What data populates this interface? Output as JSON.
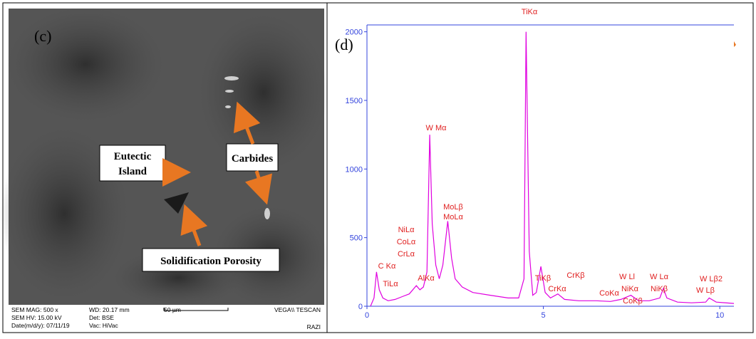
{
  "sem_image": {
    "panel_label": "(c)",
    "annotations": [
      "Eutectic",
      "Island",
      "Carbides",
      "Solidification Porosity"
    ],
    "info": [
      [
        "SEM MAG: 500 x",
        "SEM HV: 15.00 kV",
        "Date(m/d/y): 07/11/19"
      ],
      [
        "WD: 20.17 mm",
        "Det: BSE",
        "Vac: HiVac"
      ],
      [
        "50 µm"
      ],
      [
        "VEGA\\\\ TESCAN",
        "RAZI"
      ]
    ]
  },
  "chart_data": {
    "type": "line",
    "panel_label": "(d)",
    "color": "#e000e0",
    "x": [
      0.1,
      0.2,
      0.27,
      0.35,
      0.45,
      0.6,
      0.8,
      1.0,
      1.2,
      1.4,
      1.5,
      1.6,
      1.7,
      1.78,
      1.85,
      1.95,
      2.05,
      2.15,
      2.29,
      2.4,
      2.5,
      2.7,
      3.0,
      3.5,
      4.0,
      4.3,
      4.45,
      4.51,
      4.6,
      4.7,
      4.8,
      4.93,
      5.05,
      5.2,
      5.41,
      5.6,
      6.0,
      6.5,
      6.9,
      7.2,
      7.48,
      7.7,
      8.0,
      8.3,
      8.4,
      8.5,
      8.8,
      9.2,
      9.6,
      9.7,
      9.9,
      10.4
    ],
    "values": [
      0,
      60,
      250,
      120,
      60,
      40,
      50,
      70,
      90,
      150,
      120,
      140,
      250,
      1250,
      600,
      300,
      200,
      300,
      620,
      350,
      200,
      140,
      100,
      80,
      60,
      60,
      200,
      2000,
      400,
      80,
      100,
      290,
      100,
      60,
      90,
      50,
      40,
      40,
      35,
      50,
      80,
      40,
      40,
      60,
      130,
      60,
      30,
      25,
      30,
      60,
      30,
      20
    ],
    "xlim": [
      0,
      10.4
    ],
    "ylim": [
      0,
      2050
    ],
    "xticks": [
      0,
      5,
      10
    ],
    "yticks": [
      0,
      500,
      1000,
      1500,
      2000
    ],
    "peak_labels": [
      "TiKα",
      "W Mα",
      "MoLβ",
      "MoLα",
      "NiLα",
      "CoLα",
      "CrLα",
      "C Kα",
      "TiLα",
      "AlKα",
      "TiKβ",
      "CrKα",
      "CrKβ",
      "CoKα",
      "W Ll",
      "NiKα",
      "CoKβ",
      "W Lα",
      "NiKβ",
      "W Lβ2",
      "W Lβ"
    ]
  }
}
